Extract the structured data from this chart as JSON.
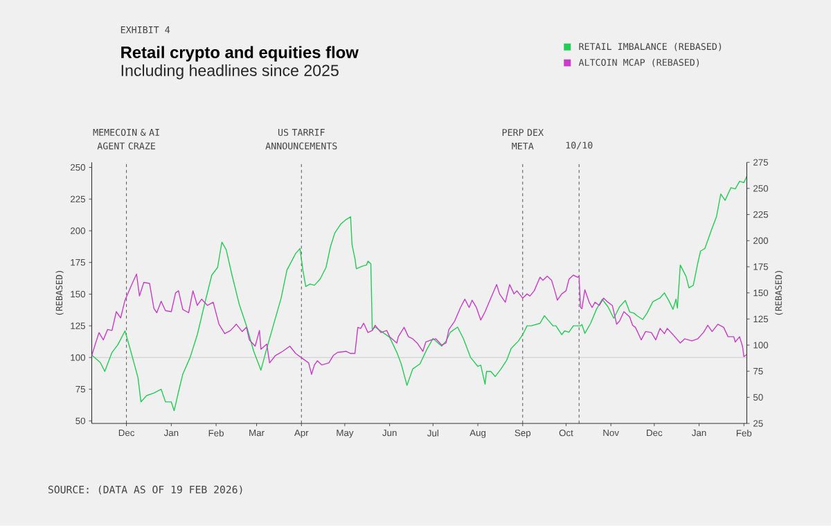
{
  "chart_data": {
    "type": "line",
    "title": "Retail crypto and equities flow",
    "subtitle": "Including headlines since 2025",
    "annotations": [
      "EXHIBIT 4",
      "SOURCE: (DATA AS OF 19 FEB 2026)"
    ],
    "ylabel": "(REBASED)",
    "y2label": "(REBASED)",
    "legend": "top right",
    "grid": false,
    "marker": "none",
    "line_style": "solid",
    "xlim": [
      "2024-11-07",
      "2026-02-03"
    ],
    "xticks": [
      {
        "value": "2024-12-01",
        "label": "Dec"
      },
      {
        "value": "2025-01-01",
        "label": "Jan"
      },
      {
        "value": "2025-02-01",
        "label": "Feb"
      },
      {
        "value": "2025-03-01",
        "label": "Mar"
      },
      {
        "value": "2025-04-01",
        "label": "Apr"
      },
      {
        "value": "2025-05-01",
        "label": "May"
      },
      {
        "value": "2025-06-01",
        "label": "Jun"
      },
      {
        "value": "2025-07-01",
        "label": "Jul"
      },
      {
        "value": "2025-08-01",
        "label": "Aug"
      },
      {
        "value": "2025-09-01",
        "label": "Sep"
      },
      {
        "value": "2025-10-01",
        "label": "Oct"
      },
      {
        "value": "2025-11-01",
        "label": "Nov"
      },
      {
        "value": "2025-12-01",
        "label": "Dec"
      },
      {
        "value": "2026-01-01",
        "label": "Jan"
      },
      {
        "value": "2026-02-01",
        "label": "Feb"
      }
    ],
    "ylim": [
      48,
      254
    ],
    "yticks": [
      50,
      75,
      100,
      125,
      150,
      175,
      200,
      225,
      250
    ],
    "y2lim": [
      25,
      275
    ],
    "y2ticks": [
      25,
      50,
      75,
      100,
      125,
      150,
      175,
      200,
      225,
      250,
      275
    ],
    "ref_lines": [
      {
        "axis": "x",
        "value": "2024-12-01",
        "label": "MEMECOIN & AI AGENT CRAZE",
        "color": "#333333",
        "line_style": "dashed"
      },
      {
        "axis": "x",
        "value": "2025-04-01",
        "label": "US TARRIF ANNOUNCEMENTS",
        "color": "#333333",
        "line_style": "dashed"
      },
      {
        "axis": "x",
        "value": "2025-09-01",
        "label": "PERP DEX META",
        "color": "#333333",
        "line_style": "dashed"
      },
      {
        "axis": "x",
        "value": "2025-10-10",
        "label": "10/10",
        "color": "#333333",
        "line_style": "dashed"
      },
      {
        "axis": "y",
        "value": 100,
        "color": "#bbbbbb",
        "line_style": "solid"
      }
    ],
    "series": [
      {
        "name": "RETAIL IMBALANCE (REBASED)",
        "color": "#22cc55",
        "x": [
          "2024-11-07",
          "2024-11-13",
          "2024-11-16",
          "2024-11-18",
          "2024-11-21",
          "2024-11-25",
          "2024-11-30",
          "2024-12-04",
          "2024-12-09",
          "2024-12-11",
          "2024-12-15",
          "2024-12-20",
          "2024-12-25",
          "2024-12-28",
          "2025-01-01",
          "2025-01-03",
          "2025-01-06",
          "2025-01-09",
          "2025-01-14",
          "2025-01-19",
          "2025-01-24",
          "2025-01-29",
          "2025-02-02",
          "2025-02-05",
          "2025-02-08",
          "2025-02-12",
          "2025-02-17",
          "2025-02-22",
          "2025-02-27",
          "2025-03-04",
          "2025-03-08",
          "2025-03-13",
          "2025-03-18",
          "2025-03-22",
          "2025-03-28",
          "2025-03-31",
          "2025-04-02",
          "2025-04-04",
          "2025-04-07",
          "2025-04-10",
          "2025-04-14",
          "2025-04-18",
          "2025-04-21",
          "2025-04-24",
          "2025-04-28",
          "2025-05-02",
          "2025-05-05",
          "2025-05-06",
          "2025-05-08",
          "2025-05-09",
          "2025-05-13",
          "2025-05-16",
          "2025-05-17",
          "2025-05-19",
          "2025-05-20",
          "2025-05-22",
          "2025-05-27",
          "2025-06-01",
          "2025-06-06",
          "2025-06-09",
          "2025-06-13",
          "2025-06-17",
          "2025-06-22",
          "2025-06-27",
          "2025-07-01",
          "2025-07-07",
          "2025-07-10",
          "2025-07-13",
          "2025-07-18",
          "2025-07-22",
          "2025-07-27",
          "2025-08-01",
          "2025-08-03",
          "2025-08-06",
          "2025-08-07",
          "2025-08-10",
          "2025-08-13",
          "2025-08-17",
          "2025-08-21",
          "2025-08-24",
          "2025-08-29",
          "2025-09-01",
          "2025-09-04",
          "2025-09-07",
          "2025-09-10",
          "2025-09-13",
          "2025-09-16",
          "2025-09-19",
          "2025-09-22",
          "2025-09-24",
          "2025-09-28",
          "2025-09-30",
          "2025-10-03",
          "2025-10-06",
          "2025-10-08",
          "2025-10-11",
          "2025-10-12",
          "2025-10-14",
          "2025-10-18",
          "2025-10-22",
          "2025-10-26",
          "2025-10-30",
          "2025-11-03",
          "2025-11-07",
          "2025-11-11",
          "2025-11-14",
          "2025-11-17",
          "2025-11-19",
          "2025-11-23",
          "2025-11-26",
          "2025-11-30",
          "2025-12-05",
          "2025-12-08",
          "2025-12-11",
          "2025-12-14",
          "2025-12-16",
          "2025-12-17",
          "2025-12-19",
          "2025-12-23",
          "2025-12-25",
          "2025-12-28",
          "2025-12-31",
          "2026-01-02",
          "2026-01-05",
          "2026-01-10",
          "2026-01-13",
          "2026-01-16",
          "2026-01-19",
          "2026-01-23",
          "2026-01-26",
          "2026-01-29",
          "2026-02-01",
          "2026-02-03"
        ],
        "values": [
          102,
          96,
          89,
          95,
          104,
          110,
          121,
          105,
          84,
          65,
          70,
          72,
          75,
          65,
          65,
          58,
          73,
          87,
          100,
          118,
          142,
          165,
          171,
          191,
          185,
          165,
          142,
          125,
          105,
          90,
          107,
          127,
          147,
          169,
          182,
          186,
          169,
          156,
          158,
          157,
          162,
          171,
          187,
          198,
          205,
          209,
          211,
          189,
          178,
          170,
          172,
          173,
          176,
          174,
          122,
          124,
          120,
          116,
          104,
          95,
          78,
          91,
          95,
          107,
          115,
          109,
          113,
          120,
          124,
          115,
          100,
          93,
          94,
          79,
          89,
          89,
          85,
          91,
          98,
          107,
          113,
          118,
          125,
          125,
          126,
          127,
          133,
          129,
          125,
          125,
          118,
          121,
          120,
          125,
          125,
          125,
          126,
          119,
          127,
          138,
          146,
          140,
          131,
          140,
          145,
          136,
          135,
          133,
          130,
          135,
          144,
          147,
          151,
          145,
          138,
          146,
          139,
          173,
          164,
          155,
          157,
          174,
          184,
          186,
          202,
          211,
          229,
          224,
          234,
          233,
          239,
          238,
          243
        ]
      },
      {
        "name": "ALTCOIN MCAP (REBASED)",
        "color": "#c83cc8",
        "axis": "y2",
        "x": [
          "2024-11-07",
          "2024-11-12",
          "2024-11-15",
          "2024-11-18",
          "2024-11-21",
          "2024-11-24",
          "2024-11-27",
          "2024-11-30",
          "2024-12-05",
          "2024-12-08",
          "2024-12-10",
          "2024-12-13",
          "2024-12-17",
          "2024-12-20",
          "2024-12-22",
          "2024-12-25",
          "2024-12-28",
          "2025-01-01",
          "2025-01-04",
          "2025-01-06",
          "2025-01-09",
          "2025-01-13",
          "2025-01-16",
          "2025-01-19",
          "2025-01-22",
          "2025-01-26",
          "2025-01-30",
          "2025-02-03",
          "2025-02-07",
          "2025-02-11",
          "2025-02-15",
          "2025-02-19",
          "2025-02-22",
          "2025-02-24",
          "2025-02-28",
          "2025-03-03",
          "2025-03-04",
          "2025-03-08",
          "2025-03-10",
          "2025-03-14",
          "2025-03-19",
          "2025-03-24",
          "2025-03-28",
          "2025-04-01",
          "2025-04-04",
          "2025-04-06",
          "2025-04-08",
          "2025-04-10",
          "2025-04-12",
          "2025-04-15",
          "2025-04-20",
          "2025-04-23",
          "2025-04-26",
          "2025-05-02",
          "2025-05-05",
          "2025-05-08",
          "2025-05-10",
          "2025-05-12",
          "2025-05-14",
          "2025-05-17",
          "2025-05-20",
          "2025-05-22",
          "2025-05-26",
          "2025-05-30",
          "2025-06-01",
          "2025-06-06",
          "2025-06-07",
          "2025-06-11",
          "2025-06-14",
          "2025-06-17",
          "2025-06-20",
          "2025-06-24",
          "2025-06-26",
          "2025-06-30",
          "2025-07-03",
          "2025-07-07",
          "2025-07-10",
          "2025-07-12",
          "2025-07-16",
          "2025-07-20",
          "2025-07-23",
          "2025-07-26",
          "2025-07-28",
          "2025-07-31",
          "2025-08-03",
          "2025-08-06",
          "2025-08-10",
          "2025-08-14",
          "2025-08-16",
          "2025-08-20",
          "2025-08-23",
          "2025-08-26",
          "2025-08-28",
          "2025-09-01",
          "2025-09-04",
          "2025-09-06",
          "2025-09-09",
          "2025-09-13",
          "2025-09-15",
          "2025-09-18",
          "2025-09-21",
          "2025-09-23",
          "2025-09-25",
          "2025-09-28",
          "2025-10-01",
          "2025-10-03",
          "2025-10-06",
          "2025-10-09",
          "2025-10-10",
          "2025-10-11",
          "2025-10-12",
          "2025-10-14",
          "2025-10-17",
          "2025-10-19",
          "2025-10-21",
          "2025-10-24",
          "2025-10-27",
          "2025-10-30",
          "2025-11-02",
          "2025-11-05",
          "2025-11-07",
          "2025-11-10",
          "2025-11-14",
          "2025-11-16",
          "2025-11-18",
          "2025-11-22",
          "2025-11-25",
          "2025-11-29",
          "2025-12-02",
          "2025-12-05",
          "2025-12-08",
          "2025-12-10",
          "2025-12-14",
          "2025-12-19",
          "2025-12-22",
          "2025-12-27",
          "2025-12-31",
          "2026-01-04",
          "2026-01-07",
          "2026-01-10",
          "2026-01-14",
          "2026-01-18",
          "2026-01-21",
          "2026-01-25",
          "2026-01-26",
          "2026-01-29",
          "2026-01-31",
          "2026-02-01",
          "2026-02-03"
        ],
        "values": [
          90,
          112,
          105,
          115,
          114,
          132,
          126,
          143,
          159,
          168,
          147,
          160,
          159,
          135,
          131,
          142,
          133,
          132,
          150,
          152,
          134,
          131,
          152,
          138,
          144,
          138,
          141,
          120,
          111,
          114,
          120,
          113,
          117,
          105,
          99,
          114,
          96,
          101,
          83,
          90,
          94,
          99,
          92,
          88,
          85,
          83,
          72,
          81,
          85,
          81,
          83,
          90,
          93,
          94,
          92,
          92,
          117,
          116,
          121,
          112,
          114,
          119,
          112,
          114,
          108,
          102,
          108,
          117,
          108,
          106,
          102,
          94,
          103,
          105,
          106,
          100,
          102,
          115,
          123,
          136,
          144,
          136,
          143,
          136,
          124,
          132,
          145,
          158,
          149,
          141,
          158,
          149,
          152,
          145,
          149,
          147,
          152,
          165,
          162,
          166,
          162,
          153,
          143,
          149,
          152,
          163,
          167,
          165,
          166,
          136,
          135,
          153,
          141,
          136,
          141,
          138,
          145,
          141,
          138,
          120,
          123,
          132,
          127,
          119,
          117,
          105,
          113,
          112,
          105,
          116,
          111,
          116,
          110,
          102,
          106,
          104,
          106,
          112,
          119,
          113,
          120,
          117,
          108,
          108,
          103,
          108,
          99,
          89,
          91
        ]
      }
    ]
  }
}
